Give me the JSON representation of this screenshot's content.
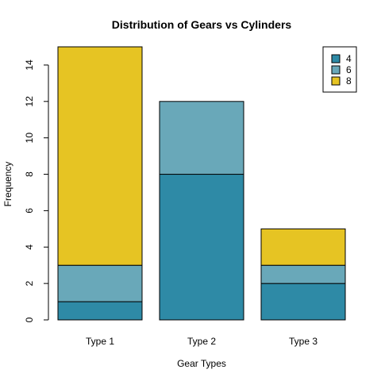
{
  "chart_data": {
    "type": "bar",
    "stacked": true,
    "title": "Distribution of Gears vs Cylinders",
    "xlabel": "Gear Types",
    "ylabel": "Frequency",
    "categories": [
      "Type 1",
      "Type 2",
      "Type 3"
    ],
    "series": [
      {
        "name": "4",
        "color": "#2E8AA6",
        "values": [
          1,
          8,
          2
        ]
      },
      {
        "name": "6",
        "color": "#69A8B9",
        "values": [
          2,
          4,
          1
        ]
      },
      {
        "name": "8",
        "color": "#E6C423",
        "values": [
          12,
          0,
          2
        ]
      }
    ],
    "y_ticks": [
      0,
      2,
      4,
      6,
      8,
      10,
      12,
      14
    ],
    "ylim": [
      0,
      15
    ],
    "grid": false,
    "legend": {
      "placement": "top-right"
    }
  }
}
